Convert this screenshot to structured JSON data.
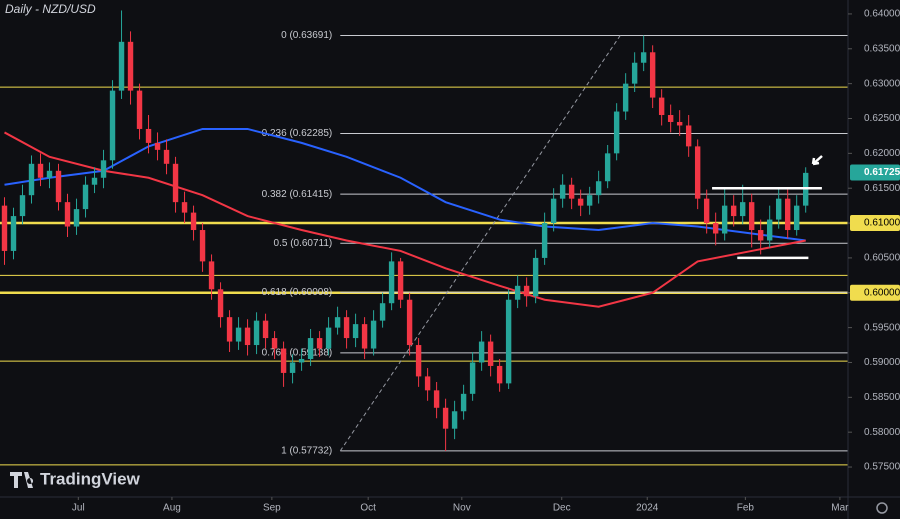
{
  "chart_data": {
    "type": "candlestick",
    "title": "Daily - NZD/USD",
    "watermark": "TradingView",
    "x": [
      0,
      1,
      2,
      3,
      4,
      5,
      6,
      7,
      8,
      9,
      10,
      11,
      12,
      13,
      14,
      15,
      16,
      17,
      18,
      19,
      20,
      21,
      22,
      23,
      24,
      25,
      26,
      27,
      28,
      29,
      30,
      31,
      32,
      33,
      34,
      35,
      36,
      37,
      38,
      39,
      40,
      41,
      42,
      43,
      44,
      45,
      46,
      47,
      48,
      49,
      50,
      51,
      52,
      53,
      54,
      55,
      56,
      57,
      58,
      59,
      60,
      61,
      62,
      63,
      64,
      65,
      66,
      67,
      68,
      69,
      70,
      71,
      72,
      73,
      74,
      75,
      76,
      77,
      78,
      79,
      80,
      81,
      82,
      83,
      84,
      85,
      86,
      87,
      88,
      89
    ],
    "open": [
      0.6125,
      0.606,
      0.611,
      0.614,
      0.6185,
      0.6165,
      0.6175,
      0.613,
      0.6095,
      0.612,
      0.6155,
      0.6165,
      0.619,
      0.629,
      0.636,
      0.629,
      0.6235,
      0.6215,
      0.6205,
      0.6185,
      0.613,
      0.6115,
      0.609,
      0.6045,
      0.6005,
      0.5965,
      0.593,
      0.595,
      0.5925,
      0.596,
      0.5935,
      0.592,
      0.5885,
      0.59,
      0.5905,
      0.5935,
      0.592,
      0.595,
      0.5965,
      0.5935,
      0.5955,
      0.592,
      0.596,
      0.5985,
      0.6045,
      0.599,
      0.5925,
      0.588,
      0.586,
      0.5835,
      0.5805,
      0.583,
      0.5855,
      0.59,
      0.593,
      0.5895,
      0.587,
      0.599,
      0.601,
      0.5995,
      0.605,
      0.61,
      0.6135,
      0.6155,
      0.6135,
      0.6125,
      0.614,
      0.616,
      0.62,
      0.626,
      0.63,
      0.633,
      0.6345,
      0.628,
      0.6255,
      0.6245,
      0.624,
      0.621,
      0.6135,
      0.61,
      0.6085,
      0.6125,
      0.611,
      0.613,
      0.609,
      0.6075,
      0.6105,
      0.6135,
      0.609,
      0.6125
    ],
    "high": [
      0.6137,
      0.6122,
      0.6155,
      0.6197,
      0.62,
      0.6187,
      0.6185,
      0.6142,
      0.6135,
      0.6167,
      0.618,
      0.6205,
      0.6305,
      0.6405,
      0.6375,
      0.63,
      0.6255,
      0.623,
      0.622,
      0.6195,
      0.6145,
      0.6125,
      0.61,
      0.6055,
      0.6015,
      0.5975,
      0.5965,
      0.5962,
      0.5972,
      0.597,
      0.5945,
      0.593,
      0.5912,
      0.592,
      0.5948,
      0.5945,
      0.5965,
      0.598,
      0.5975,
      0.597,
      0.5965,
      0.5975,
      0.6,
      0.6058,
      0.605,
      0.6,
      0.5935,
      0.5892,
      0.5872,
      0.5848,
      0.5845,
      0.5868,
      0.5915,
      0.5945,
      0.594,
      0.5905,
      0.6005,
      0.6025,
      0.6022,
      0.6062,
      0.6115,
      0.615,
      0.617,
      0.6165,
      0.6148,
      0.6152,
      0.6175,
      0.6212,
      0.6272,
      0.6315,
      0.6345,
      0.6369,
      0.6355,
      0.6292,
      0.627,
      0.6262,
      0.6255,
      0.622,
      0.6148,
      0.6115,
      0.615,
      0.614,
      0.6155,
      0.6142,
      0.6105,
      0.6125,
      0.615,
      0.6148,
      0.614,
      0.618
    ],
    "low": [
      0.604,
      0.6048,
      0.6098,
      0.6128,
      0.6153,
      0.615,
      0.6118,
      0.608,
      0.6083,
      0.6108,
      0.6143,
      0.615,
      0.6178,
      0.6278,
      0.627,
      0.622,
      0.62,
      0.619,
      0.617,
      0.6115,
      0.61,
      0.6075,
      0.603,
      0.599,
      0.595,
      0.5915,
      0.5918,
      0.591,
      0.5912,
      0.592,
      0.5905,
      0.5865,
      0.587,
      0.5888,
      0.5895,
      0.5908,
      0.591,
      0.594,
      0.592,
      0.5922,
      0.5905,
      0.591,
      0.595,
      0.5975,
      0.5978,
      0.591,
      0.5865,
      0.5845,
      0.582,
      0.5773,
      0.579,
      0.5818,
      0.5845,
      0.5888,
      0.588,
      0.5858,
      0.5862,
      0.5978,
      0.598,
      0.5985,
      0.604,
      0.6088,
      0.6122,
      0.612,
      0.611,
      0.6112,
      0.6128,
      0.615,
      0.619,
      0.6248,
      0.6288,
      0.6318,
      0.6265,
      0.624,
      0.623,
      0.6225,
      0.6195,
      0.612,
      0.6085,
      0.6068,
      0.6075,
      0.6095,
      0.6098,
      0.6065,
      0.6055,
      0.6065,
      0.6092,
      0.6078,
      0.6082,
      0.6115
    ],
    "close": [
      0.606,
      0.611,
      0.614,
      0.6185,
      0.6165,
      0.6175,
      0.613,
      0.6095,
      0.612,
      0.6155,
      0.6165,
      0.619,
      0.629,
      0.636,
      0.629,
      0.6235,
      0.6215,
      0.6205,
      0.6185,
      0.613,
      0.6115,
      0.609,
      0.6045,
      0.6005,
      0.5965,
      0.593,
      0.595,
      0.5925,
      0.596,
      0.5935,
      0.592,
      0.5885,
      0.59,
      0.5905,
      0.5935,
      0.592,
      0.595,
      0.5965,
      0.5935,
      0.5955,
      0.592,
      0.596,
      0.5985,
      0.6045,
      0.599,
      0.5925,
      0.588,
      0.586,
      0.5835,
      0.5805,
      0.583,
      0.5855,
      0.59,
      0.593,
      0.5895,
      0.587,
      0.599,
      0.601,
      0.5995,
      0.605,
      0.61,
      0.6135,
      0.6155,
      0.6135,
      0.6125,
      0.614,
      0.616,
      0.62,
      0.626,
      0.63,
      0.633,
      0.6345,
      0.628,
      0.6255,
      0.6245,
      0.624,
      0.621,
      0.6135,
      0.61,
      0.6085,
      0.6125,
      0.611,
      0.613,
      0.609,
      0.6075,
      0.6105,
      0.6135,
      0.609,
      0.6125,
      0.6172
    ],
    "up_color": "#26a69a",
    "down_color": "#f23645",
    "moving_averages": [
      {
        "color": "#2962ff",
        "x": [
          0,
          5,
          11,
          16,
          22,
          27,
          33,
          38,
          44,
          49,
          55,
          60,
          66,
          72,
          77,
          83,
          89
        ],
        "values": [
          0.6155,
          0.6165,
          0.6175,
          0.621,
          0.6235,
          0.6235,
          0.6215,
          0.6195,
          0.6165,
          0.613,
          0.6105,
          0.6095,
          0.609,
          0.61,
          0.6095,
          0.6085,
          0.6075
        ]
      },
      {
        "color": "#f23645",
        "x": [
          0,
          5,
          11,
          16,
          22,
          27,
          33,
          38,
          44,
          49,
          55,
          60,
          66,
          72,
          77,
          83,
          89
        ],
        "values": [
          0.623,
          0.6195,
          0.6175,
          0.6165,
          0.614,
          0.611,
          0.609,
          0.6075,
          0.606,
          0.6035,
          0.601,
          0.599,
          0.598,
          0.6,
          0.6045,
          0.606,
          0.6075
        ]
      }
    ],
    "fib_levels": [
      {
        "value": 0.63691,
        "label": "0 (0.63691)"
      },
      {
        "value": 0.62285,
        "label": "0.236 (0.62285)"
      },
      {
        "value": 0.61415,
        "label": "0.382 (0.61415)"
      },
      {
        "value": 0.60711,
        "label": "0.5 (0.60711)"
      },
      {
        "value": 0.60008,
        "label": "0.618 (0.60008)"
      },
      {
        "value": 0.59138,
        "label": "0.764 (0.59138)"
      },
      {
        "value": 0.57732,
        "label": "1 (0.57732)"
      }
    ],
    "fib_color": "#c8cad0",
    "trendline": {
      "x": [
        37.3,
        68.4
      ],
      "values": [
        0.57732,
        0.63691
      ]
    },
    "levels": [
      0.6295,
      0.6025,
      0.5902,
      0.5753
    ],
    "key_levels": [
      0.61,
      0.6
    ],
    "level_color": "#f0dc4e",
    "range_lines": [
      {
        "x": [
          78.6,
          90.8
        ],
        "value": 0.615
      },
      {
        "x": [
          81.4,
          89.3
        ],
        "value": 0.605
      }
    ],
    "last_price": {
      "value": 0.61725,
      "label": "0.61725"
    },
    "xlim": [
      -0.5,
      93.7
    ],
    "ylim": [
      0.5707,
      0.642
    ],
    "xticks": [
      {
        "value": 8.2,
        "label": "Jul"
      },
      {
        "value": 18.6,
        "label": "Aug"
      },
      {
        "value": 29.7,
        "label": "Sep"
      },
      {
        "value": 40.4,
        "label": "Oct"
      },
      {
        "value": 50.8,
        "label": "Nov"
      },
      {
        "value": 61.9,
        "label": "Dec"
      },
      {
        "value": 71.4,
        "label": "2024"
      },
      {
        "value": 82.3,
        "label": "Feb"
      },
      {
        "value": 92.8,
        "label": "Mar"
      }
    ],
    "yticks": [
      {
        "value": 0.575,
        "label": "0.57500"
      },
      {
        "value": 0.58,
        "label": "0.58000"
      },
      {
        "value": 0.585,
        "label": "0.58500"
      },
      {
        "value": 0.59,
        "label": "0.59000"
      },
      {
        "value": 0.595,
        "label": "0.59500"
      },
      {
        "value": 0.6,
        "label": "0.60000"
      },
      {
        "value": 0.605,
        "label": "0.60500"
      },
      {
        "value": 0.61,
        "label": "0.61000"
      },
      {
        "value": 0.615,
        "label": "0.61500"
      },
      {
        "value": 0.62,
        "label": "0.62000"
      },
      {
        "value": 0.625,
        "label": "0.62500"
      },
      {
        "value": 0.63,
        "label": "0.63000"
      },
      {
        "value": 0.635,
        "label": "0.63500"
      },
      {
        "value": 0.64,
        "label": "0.64000"
      }
    ]
  }
}
